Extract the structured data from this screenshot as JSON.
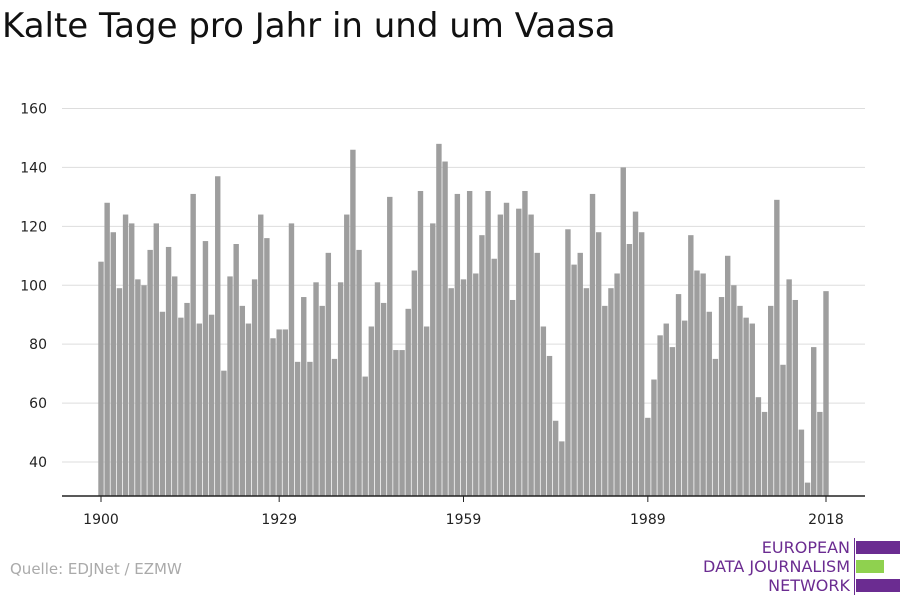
{
  "title": "Kalte Tage pro Jahr in und um Vaasa",
  "source": "Quelle: EDJNet / EZMW",
  "logo": {
    "lines": [
      "EUROPEAN",
      "DATA JOURNALISM",
      "NETWORK"
    ],
    "colors": {
      "purple": "#6b2c91",
      "green": "#8fd14f"
    }
  },
  "colors": {
    "bar": "#9e9e9e",
    "grid": "#dddddd",
    "axis": "#222222"
  },
  "chart_data": {
    "type": "bar",
    "title": "Kalte Tage pro Jahr in und um Vaasa",
    "xlabel": "",
    "ylabel": "",
    "x_start": 1900,
    "x_end": 2018,
    "x_ticks": [
      1900,
      1929,
      1959,
      1989,
      2018
    ],
    "y_ticks": [
      40,
      60,
      80,
      100,
      120,
      140,
      160
    ],
    "ylim": [
      28,
      163
    ],
    "grid": true,
    "values": [
      108,
      128,
      118,
      99,
      124,
      121,
      102,
      100,
      112,
      121,
      91,
      113,
      103,
      89,
      94,
      131,
      87,
      115,
      90,
      137,
      71,
      103,
      114,
      93,
      87,
      102,
      124,
      116,
      82,
      85,
      85,
      121,
      74,
      96,
      74,
      101,
      93,
      111,
      75,
      101,
      124,
      146,
      112,
      69,
      86,
      101,
      94,
      130,
      78,
      78,
      92,
      105,
      132,
      86,
      121,
      148,
      142,
      99,
      131,
      102,
      132,
      104,
      117,
      132,
      109,
      124,
      128,
      95,
      126,
      132,
      124,
      111,
      86,
      76,
      54,
      47,
      119,
      107,
      111,
      99,
      131,
      118,
      93,
      99,
      104,
      140,
      114,
      125,
      118,
      55,
      68,
      83,
      87,
      79,
      97,
      88,
      117,
      105,
      104,
      91,
      75,
      96,
      110,
      100,
      93,
      89,
      87,
      62,
      57,
      93,
      129,
      73,
      102,
      95,
      51,
      33,
      79,
      57,
      98
    ]
  }
}
